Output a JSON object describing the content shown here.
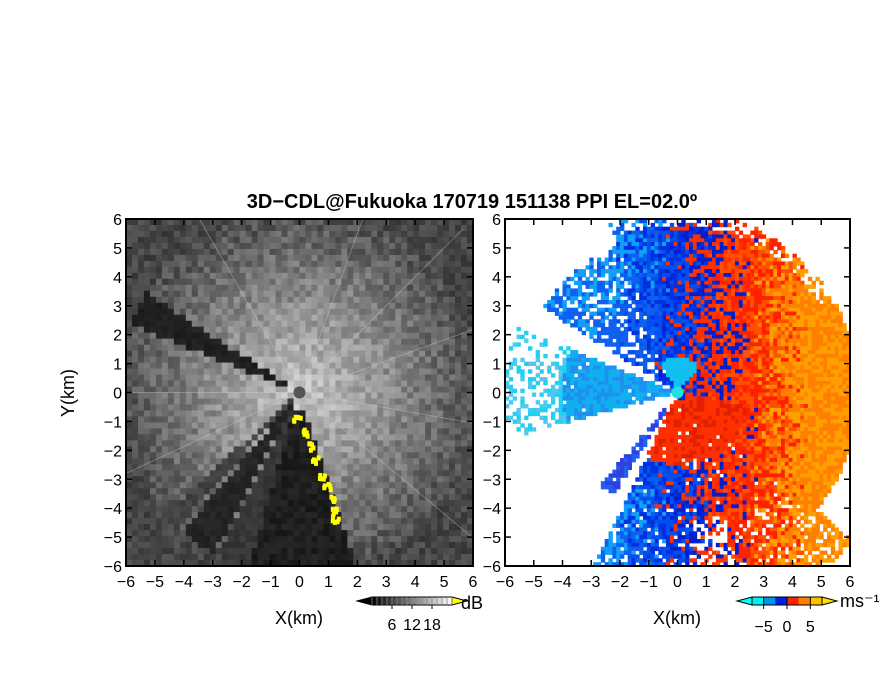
{
  "title": "3D−CDL@Fukuoka 170719 151138 PPI EL=02.0º",
  "chart_data": [
    {
      "type": "heatmap",
      "panel": "left",
      "quantity": "reflectivity",
      "xlabel": "X(km)",
      "ylabel": "Y(km)",
      "xlim": [
        -6,
        6
      ],
      "ylim": [
        -6,
        6
      ],
      "x_ticks": [
        "−6",
        "−5",
        "−4",
        "−3",
        "−2",
        "−1",
        "0",
        "1",
        "2",
        "3",
        "4",
        "5",
        "6"
      ],
      "y_ticks": [
        "6",
        "5",
        "4",
        "3",
        "2",
        "1",
        "0",
        "−1",
        "−2",
        "−3",
        "−4",
        "−5",
        "−6"
      ],
      "colorbar": {
        "unit": "dB",
        "ticks": [
          "6",
          "12",
          "18"
        ],
        "range": [
          0,
          24
        ],
        "colors": [
          "#000000",
          "#ffffff"
        ]
      }
    },
    {
      "type": "heatmap",
      "panel": "right",
      "quantity": "radial velocity",
      "xlabel": "X(km)",
      "ylabel": "",
      "xlim": [
        -6,
        6
      ],
      "ylim": [
        -6,
        6
      ],
      "x_ticks": [
        "−6",
        "−5",
        "−4",
        "−3",
        "−2",
        "−1",
        "0",
        "1",
        "2",
        "3",
        "4",
        "5",
        "6"
      ],
      "y_ticks": [
        "6",
        "5",
        "4",
        "3",
        "2",
        "1",
        "0",
        "−1",
        "−2",
        "−3",
        "−4",
        "−5",
        "−6"
      ],
      "colorbar": {
        "unit": "ms⁻¹",
        "ticks": [
          "−5",
          "0",
          "5"
        ],
        "range": [
          -7.5,
          7.5
        ],
        "colors": [
          "#00f0f0",
          "#0090f0",
          "#0020e0",
          "#ff2000",
          "#ff8000",
          "#ffc000"
        ]
      }
    }
  ]
}
